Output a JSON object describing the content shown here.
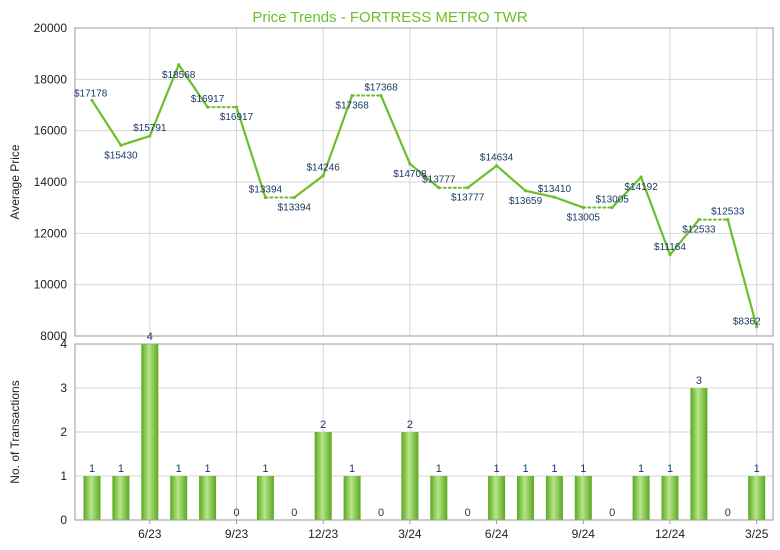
{
  "chart_data": [
    {
      "type": "line",
      "title": "Price Trends - FORTRESS METRO TWR",
      "ylabel": "Average Price",
      "ylim": [
        8000,
        20000
      ],
      "yticks": [
        "20000",
        "18000",
        "16000",
        "14000",
        "12000",
        "10000",
        "8000"
      ],
      "grid": true,
      "color": "#6cbf2a",
      "points": [
        {
          "idx": 0,
          "value": 17178,
          "label": "$17178"
        },
        {
          "idx": 1,
          "value": 15430,
          "label": "$15430"
        },
        {
          "idx": 2,
          "value": 15791,
          "label": "$15791"
        },
        {
          "idx": 3,
          "value": 18568,
          "label": "$18568"
        },
        {
          "idx": 4,
          "value": 16917,
          "label": "$16917"
        },
        {
          "idx": 5,
          "value": 16917,
          "label": "$16917",
          "carried": true
        },
        {
          "idx": 6,
          "value": 13394,
          "label": "$13394"
        },
        {
          "idx": 7,
          "value": 13394,
          "label": "$13394",
          "carried": true
        },
        {
          "idx": 8,
          "value": 14246,
          "label": "$14246"
        },
        {
          "idx": 9,
          "value": 17368,
          "label": "$17368"
        },
        {
          "idx": 10,
          "value": 17368,
          "label": "$17368",
          "carried": true
        },
        {
          "idx": 11,
          "value": 14708,
          "label": "$14708"
        },
        {
          "idx": 12,
          "value": 13777,
          "label": "$13777"
        },
        {
          "idx": 13,
          "value": 13777,
          "label": "$13777",
          "carried": true
        },
        {
          "idx": 14,
          "value": 14634,
          "label": "$14634"
        },
        {
          "idx": 15,
          "value": 13659,
          "label": "$13659"
        },
        {
          "idx": 16,
          "value": 13410,
          "label": "$13410"
        },
        {
          "idx": 17,
          "value": 13005,
          "label": "$13005"
        },
        {
          "idx": 18,
          "value": 13005,
          "label": "$13005",
          "carried": true
        },
        {
          "idx": 19,
          "value": 14192,
          "label": "$14192"
        },
        {
          "idx": 20,
          "value": 11164,
          "label": "$11164"
        },
        {
          "idx": 21,
          "value": 12533,
          "label": "$12533"
        },
        {
          "idx": 22,
          "value": 12533,
          "label": "$12533",
          "carried": true
        },
        {
          "idx": 23,
          "value": 8362,
          "label": "$8362"
        }
      ]
    },
    {
      "type": "bar",
      "ylabel": "No. of Transactions",
      "ylim": [
        0,
        4
      ],
      "yticks": [
        "4",
        "3",
        "2",
        "1",
        "0"
      ],
      "grid": true,
      "color": "#7ac943",
      "x_ticks": [
        {
          "idx": 2,
          "label": "6/23"
        },
        {
          "idx": 5,
          "label": "9/23"
        },
        {
          "idx": 8,
          "label": "12/23"
        },
        {
          "idx": 11,
          "label": "3/24"
        },
        {
          "idx": 14,
          "label": "6/24"
        },
        {
          "idx": 17,
          "label": "9/24"
        },
        {
          "idx": 20,
          "label": "12/24"
        },
        {
          "idx": 23,
          "label": "3/25"
        }
      ],
      "values": [
        1,
        1,
        4,
        1,
        1,
        0,
        1,
        0,
        2,
        1,
        0,
        2,
        1,
        0,
        1,
        1,
        1,
        1,
        0,
        1,
        1,
        3,
        0,
        1
      ]
    }
  ]
}
